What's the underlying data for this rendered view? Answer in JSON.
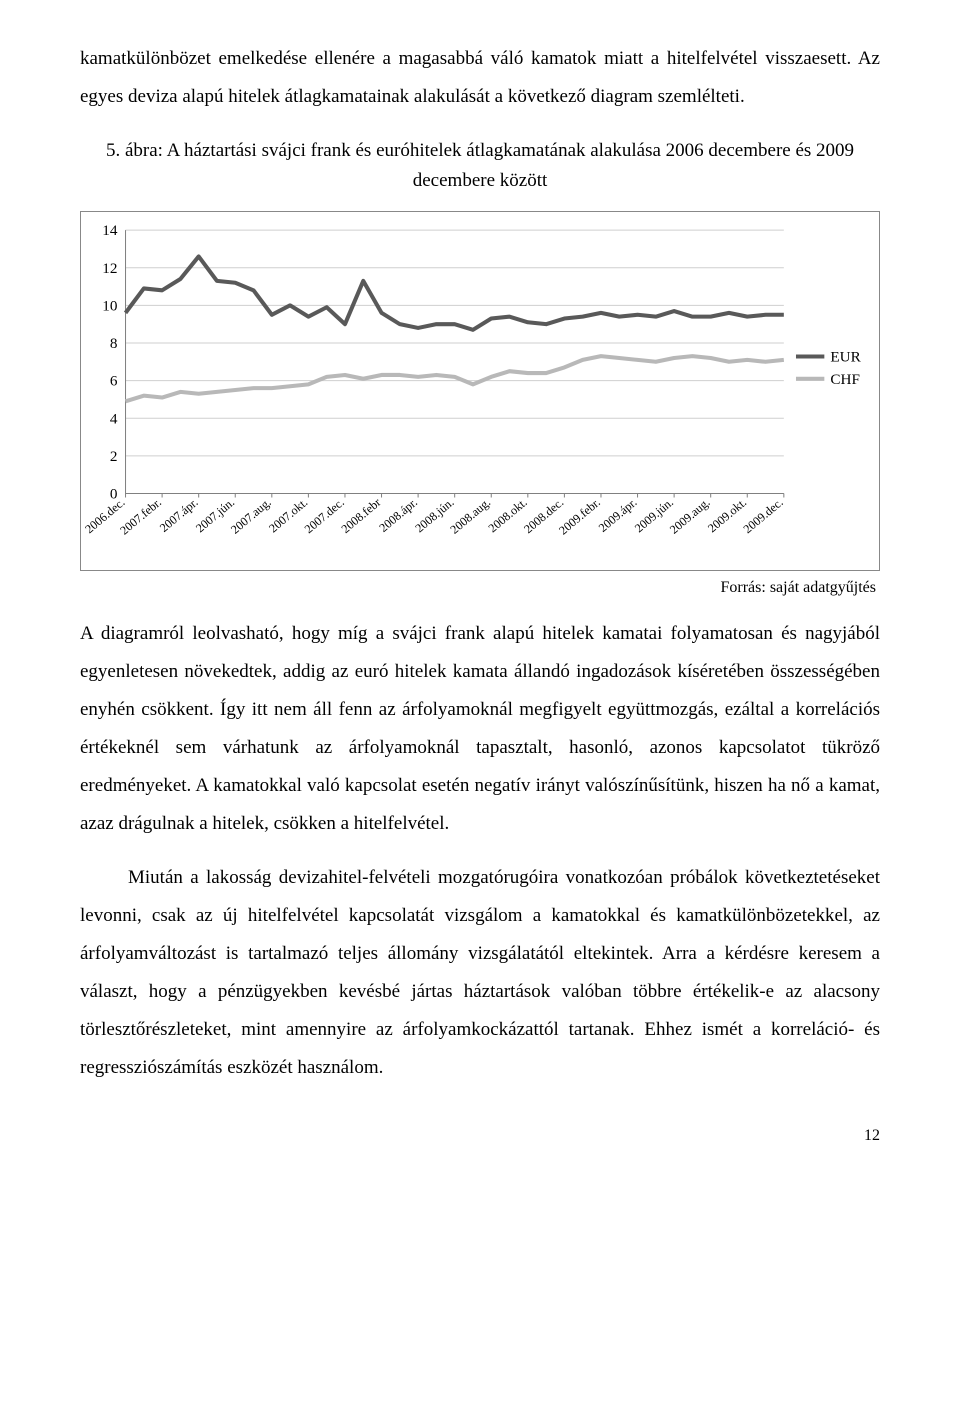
{
  "para1": "kamatkülönbözet emelkedése ellenére a magasabbá váló kamatok miatt a hitelfelvétel visszaesett. Az egyes deviza alapú hitelek átlagkamatainak alakulását a következő diagram szemlélteti.",
  "caption": "5. ábra: A háztartási svájci frank és euróhitelek átlagkamatának alakulása 2006 decembere és 2009 decembere között",
  "chart": {
    "type": "line",
    "background_color": "#ffffff",
    "grid_color": "#cfcfcf",
    "axis_color": "#808080",
    "ylabel_fontsize": 15,
    "xlabel_fontsize": 12,
    "ylim": [
      0,
      14
    ],
    "ytick_step": 2,
    "categories": [
      "2006.dec.",
      "2007.febr.",
      "2007.ápr.",
      "2007.jún.",
      "2007.aug.",
      "2007.okt.",
      "2007.dec.",
      "2008.febr",
      "2008.ápr.",
      "2008.jún.",
      "2008.aug.",
      "2008.okt.",
      "2008.dec.",
      "2009.febr.",
      "2009.ápr.",
      "2009.jún.",
      "2009.aug.",
      "2009.okt.",
      "2009.dec."
    ],
    "series": [
      {
        "name": "EUR",
        "color": "#595959",
        "line_width": 4,
        "values": [
          9.6,
          10.9,
          10.8,
          11.4,
          12.6,
          11.3,
          11.2,
          10.8,
          9.5,
          10.0,
          9.4,
          9.9,
          9.0,
          11.3,
          9.6,
          9.0,
          8.8,
          9.0,
          9.0,
          8.7,
          9.3,
          9.4,
          9.1,
          9.0,
          9.3,
          9.4,
          9.6,
          9.4,
          9.5,
          9.4,
          9.7,
          9.4,
          9.4,
          9.6,
          9.4,
          9.5,
          9.5
        ]
      },
      {
        "name": "CHF",
        "color": "#b8b8b8",
        "line_width": 4,
        "values": [
          4.9,
          5.2,
          5.1,
          5.4,
          5.3,
          5.4,
          5.5,
          5.6,
          5.6,
          5.7,
          5.8,
          6.2,
          6.3,
          6.1,
          6.3,
          6.3,
          6.2,
          6.3,
          6.2,
          5.8,
          6.2,
          6.5,
          6.4,
          6.4,
          6.7,
          7.1,
          7.3,
          7.2,
          7.1,
          7.0,
          7.2,
          7.3,
          7.2,
          7.0,
          7.1,
          7.0,
          7.1
        ]
      }
    ],
    "legend": {
      "position": "right",
      "items": [
        "EUR",
        "CHF"
      ],
      "fontsize": 15
    }
  },
  "source": "Forrás: saját adatgyűjtés",
  "para2": "A diagramról leolvasható, hogy míg a svájci frank alapú hitelek kamatai folyamatosan és nagyjából egyenletesen növekedtek, addig az euró hitelek kamata állandó ingadozások kíséretében összességében enyhén csökkent. Így itt nem áll fenn az árfolyamoknál megfigyelt együttmozgás, ezáltal a korrelációs értékeknél sem várhatunk az árfolyamoknál tapasztalt, hasonló, azonos kapcsolatot tükröző eredményeket. A kamatokkal való kapcsolat esetén negatív irányt valószínűsítünk, hiszen ha nő a kamat, azaz drágulnak a hitelek, csökken a hitelfelvétel.",
  "para3": "Miután a lakosság devizahitel-felvételi mozgatórugóira vonatkozóan próbálok következtetéseket levonni, csak az új hitelfelvétel kapcsolatát vizsgálom a kamatokkal és kamatkülönbözetekkel, az árfolyamváltozást is tartalmazó teljes állomány vizsgálatától eltekintek. Arra a kérdésre keresem a választ, hogy a pénzügyekben kevésbé jártas háztartások valóban többre értékelik-e az alacsony törlesztőrészleteket, mint amennyire az árfolyamkockázattól tartanak. Ehhez ismét a korreláció- és regressziószámítás eszközét használom.",
  "page_number": "12"
}
